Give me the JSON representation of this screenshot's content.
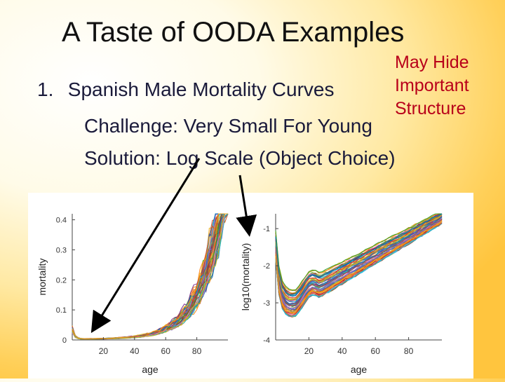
{
  "slide": {
    "title": "A Taste of OODA Examples",
    "item_number": "1.",
    "item_text": "Spanish Male Mortality Curves",
    "challenge": "Challenge:  Very Small For Young",
    "solution": "Solution:  Log Scale (Object Choice)",
    "annotation_lines": [
      "May Hide",
      "Important",
      "Structure"
    ],
    "annotation_color": "#b8001a"
  },
  "chart_data": [
    {
      "type": "line",
      "title": "",
      "xlabel": "age",
      "ylabel": "mortality",
      "xlim": [
        0,
        100
      ],
      "ylim": [
        0,
        0.42
      ],
      "xticks": [
        20,
        40,
        60,
        80
      ],
      "yticks": [
        0,
        0.1,
        0.2,
        0.3,
        0.4
      ],
      "ytick_labels": [
        "0",
        "0.1",
        "0.2",
        "0.3",
        "0.4"
      ],
      "series_description": "many overlaid multicolored mortality curves, near 0 until ~45 then rising exponentially past 0.4 at ~100",
      "representative_values": {
        "x": [
          0,
          5,
          10,
          15,
          20,
          30,
          40,
          50,
          60,
          70,
          80,
          90,
          100
        ],
        "y": [
          0.03,
          0.006,
          0.003,
          0.002,
          0.002,
          0.003,
          0.005,
          0.01,
          0.02,
          0.045,
          0.09,
          0.19,
          0.38
        ]
      }
    },
    {
      "type": "line",
      "title": "",
      "xlabel": "age",
      "ylabel": "log10(mortality)",
      "xlim": [
        0,
        100
      ],
      "ylim": [
        -4,
        -0.6
      ],
      "xticks": [
        20,
        40,
        60,
        80
      ],
      "yticks": [
        -1,
        -2,
        -3,
        -4
      ],
      "ytick_labels": [
        "-1",
        "-2",
        "-3",
        "-4"
      ],
      "series_description": "same curves on log scale: high at birth, dip near age 10-15, hump around 20, then roughly linear rise",
      "representative_values": {
        "x": [
          0,
          5,
          10,
          15,
          20,
          30,
          40,
          50,
          60,
          70,
          80,
          90,
          100
        ],
        "y": [
          -1.5,
          -2.6,
          -3.0,
          -2.9,
          -2.6,
          -2.6,
          -2.4,
          -2.1,
          -1.8,
          -1.5,
          -1.2,
          -0.9,
          -0.7
        ]
      }
    }
  ],
  "palette": [
    "#1f77b4",
    "#d62728",
    "#2ca02c",
    "#9467bd",
    "#ff7f0e",
    "#17becf",
    "#e377c2",
    "#bcbd22",
    "#8c564b",
    "#0072bd",
    "#d95319",
    "#edb120",
    "#7e2f8e",
    "#77ac30",
    "#4dbeee",
    "#a2142f"
  ]
}
